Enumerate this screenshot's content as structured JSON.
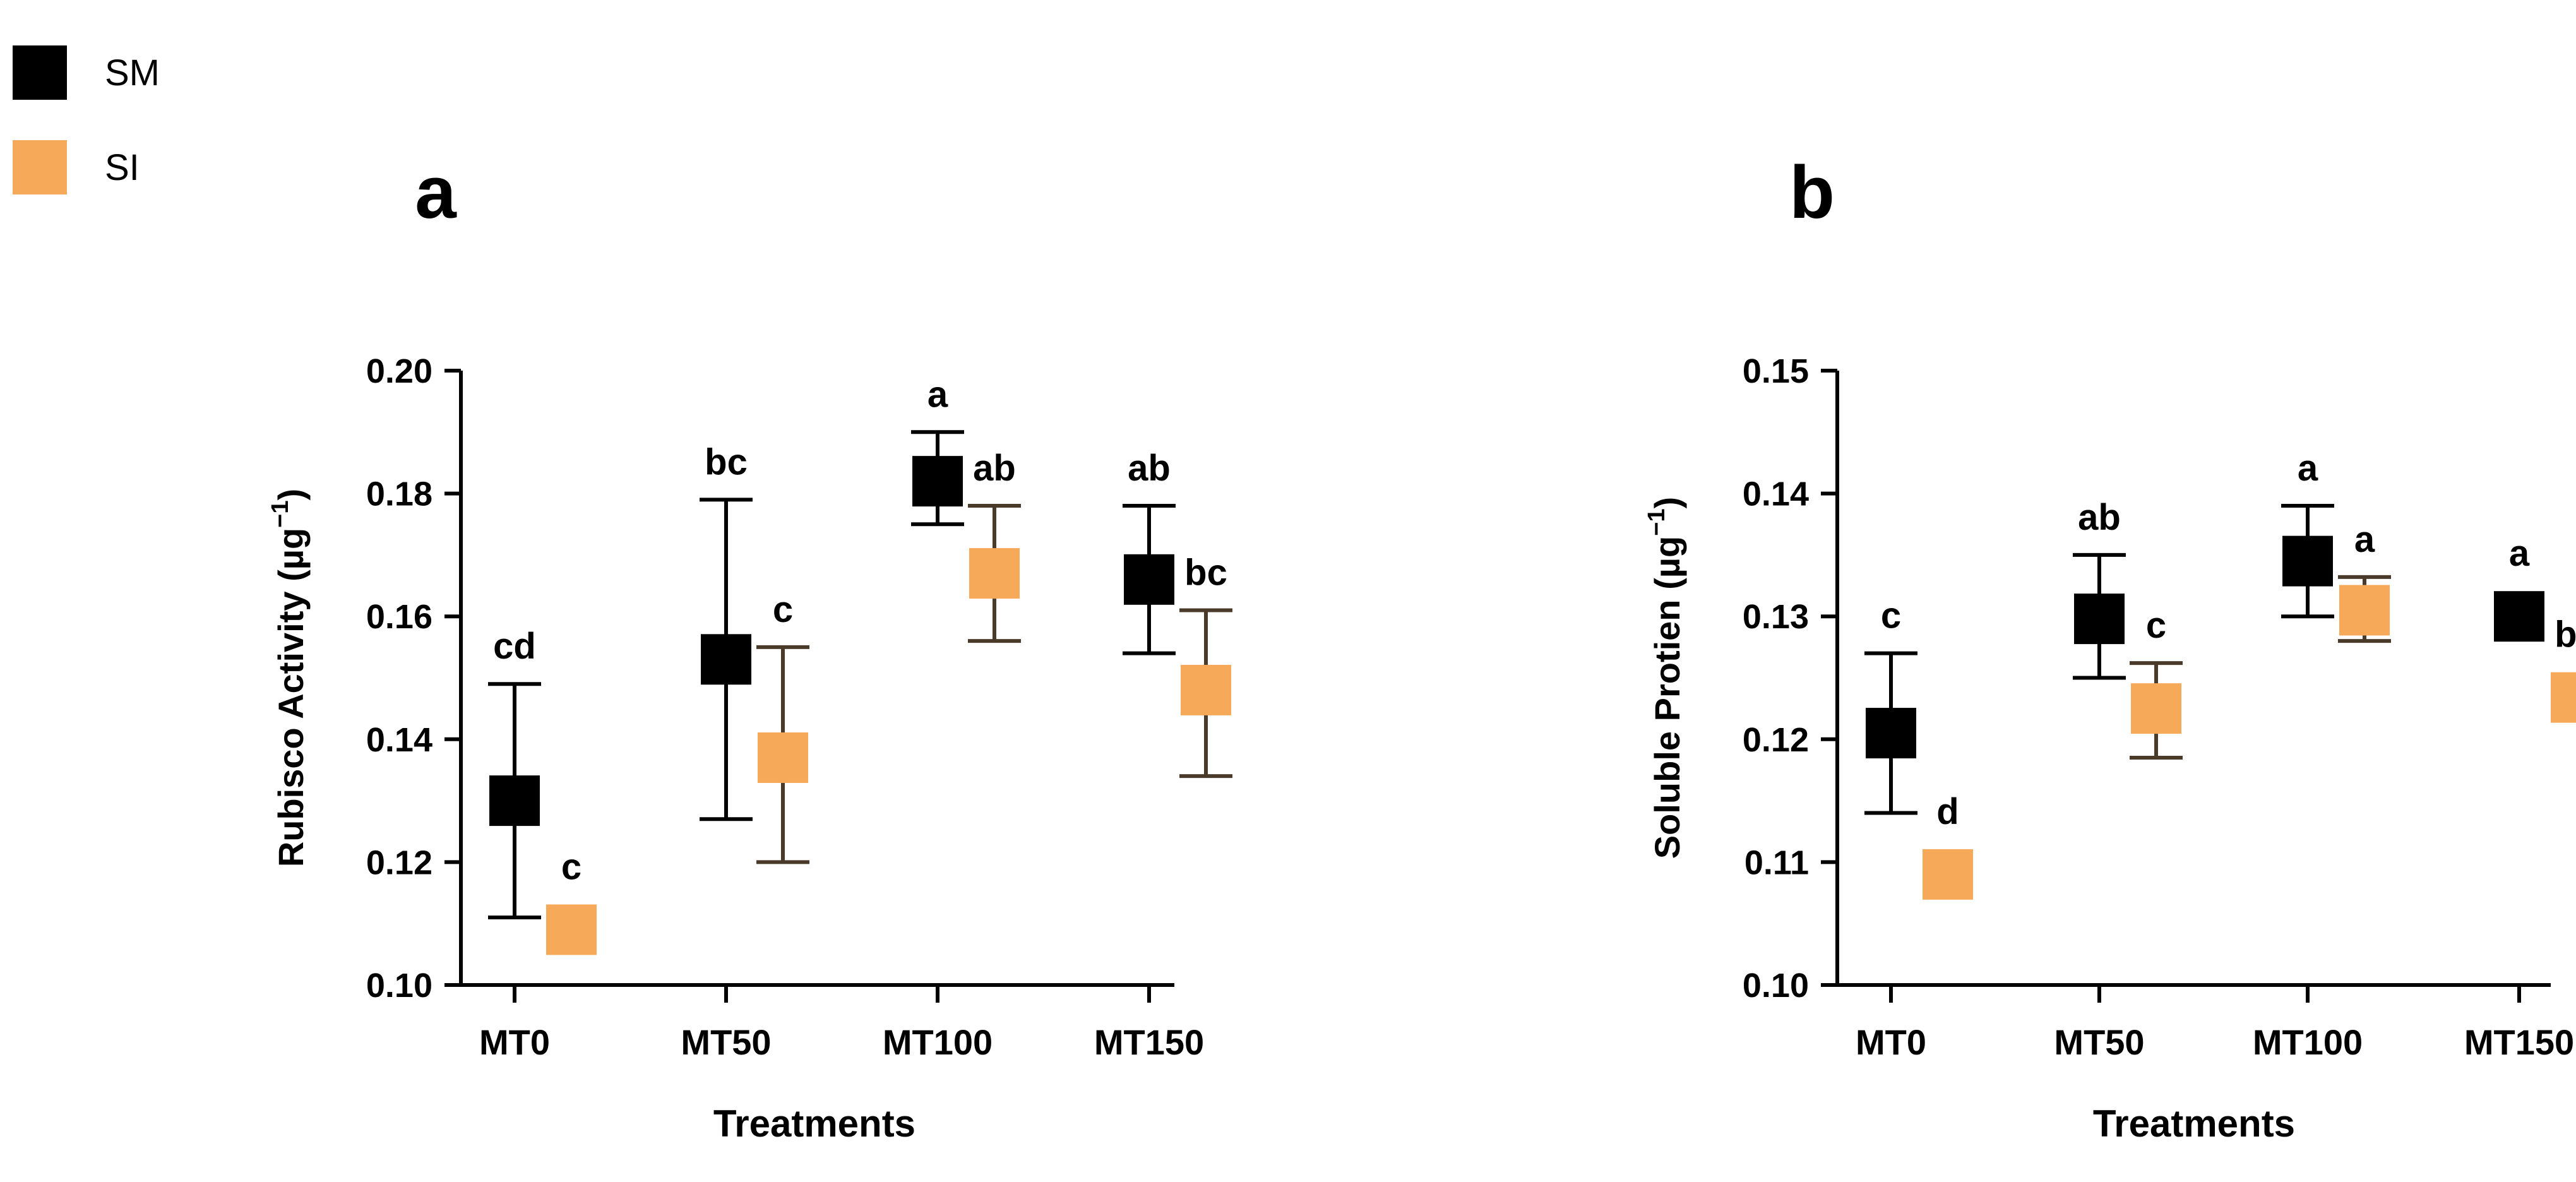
{
  "legend": {
    "items": [
      {
        "label": "SM",
        "color": "#000000"
      },
      {
        "label": "SI",
        "color": "#F7A95A"
      }
    ]
  },
  "chart_data": [
    {
      "panel_label": "a",
      "type": "scatter",
      "xlabel": "Treatments",
      "ylabel": "Rubisco Activity (µg",
      "ylabel_sup": "−1",
      "ylabel_close": ")",
      "ylim": [
        0.1,
        0.2
      ],
      "yticks": [
        "0.10",
        "0.12",
        "0.14",
        "0.16",
        "0.18",
        "0.20"
      ],
      "categories": [
        "MT0",
        "MT50",
        "MT100",
        "MT150"
      ],
      "series": [
        {
          "name": "SM",
          "color": "#000000",
          "errcolor": "#000000",
          "values": [
            0.13,
            0.153,
            0.182,
            0.166
          ],
          "err_low": [
            0.111,
            0.127,
            0.175,
            0.154
          ],
          "err_high": [
            0.149,
            0.179,
            0.19,
            0.178
          ],
          "letters": [
            "cd",
            "bc",
            "a",
            "ab"
          ]
        },
        {
          "name": "SI",
          "color": "#F7A95A",
          "errcolor": "#4A3A2A",
          "values": [
            0.109,
            0.137,
            0.167,
            0.148
          ],
          "err_low": [
            0.109,
            0.12,
            0.156,
            0.134
          ],
          "err_high": [
            0.109,
            0.155,
            0.178,
            0.161
          ],
          "letters": [
            "c",
            "c",
            "ab",
            "bc"
          ]
        }
      ]
    },
    {
      "panel_label": "b",
      "type": "scatter",
      "xlabel": "Treatments",
      "ylabel": "Soluble Protien (µg",
      "ylabel_sup": "−1",
      "ylabel_close": ")",
      "ylim": [
        0.1,
        0.15
      ],
      "yticks": [
        "0.10",
        "0.11",
        "0.12",
        "0.13",
        "0.14",
        "0.15"
      ],
      "categories": [
        "MT0",
        "MT50",
        "MT100",
        "MT150"
      ],
      "series": [
        {
          "name": "SM",
          "color": "#000000",
          "errcolor": "#000000",
          "values": [
            0.1205,
            0.1298,
            0.1345,
            0.13
          ],
          "err_low": [
            0.114,
            0.125,
            0.13,
            0.13
          ],
          "err_high": [
            0.127,
            0.135,
            0.139,
            0.13
          ],
          "letters": [
            "c",
            "ab",
            "a",
            "a"
          ]
        },
        {
          "name": "SI",
          "color": "#F7A95A",
          "errcolor": "#4A3A2A",
          "values": [
            0.109,
            0.1225,
            0.1305,
            0.1234
          ],
          "err_low": [
            0.109,
            0.1185,
            0.128,
            0.1234
          ],
          "err_high": [
            0.109,
            0.1262,
            0.1332,
            0.1234
          ],
          "letters": [
            "d",
            "c",
            "a",
            "bc"
          ]
        }
      ]
    }
  ]
}
